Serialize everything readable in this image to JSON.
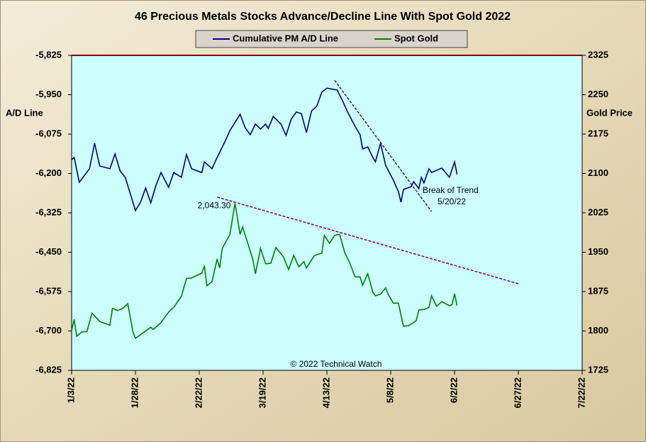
{
  "chart_data": {
    "type": "line",
    "title": "46 Precious Metals Stocks Advance/Decline Line With Spot Gold 2022",
    "y_label": "A/D Line",
    "y2_label": "Gold Price",
    "credit": "© 2022 Technical Watch",
    "note": "Break of Trend",
    "note_date": "5/20/22",
    "background": "#ccffff",
    "xlim": [
      "1/3/22",
      "7/22/22"
    ],
    "xticks": [
      "1/3/22",
      "1/28/22",
      "2/22/22",
      "3/19/22",
      "4/13/22",
      "5/8/22",
      "6/2/22",
      "6/27/22",
      "7/22/22"
    ],
    "ylim": [
      -6825,
      -5825
    ],
    "yticks": [
      {
        "value": -6825,
        "label": "-6,825"
      },
      {
        "value": -6700,
        "label": "-6,700"
      },
      {
        "value": -6575,
        "label": "-6,575"
      },
      {
        "value": -6450,
        "label": "-6,450"
      },
      {
        "value": -6325,
        "label": "-6,325"
      },
      {
        "value": -6200,
        "label": "-6,200"
      },
      {
        "value": -6075,
        "label": "-6,075"
      },
      {
        "value": -5950,
        "label": "-5,950"
      },
      {
        "value": -5825,
        "label": "-5,825"
      }
    ],
    "y2lim": [
      1725,
      2325
    ],
    "y2ticks": [
      1725,
      1800,
      1875,
      1950,
      2025,
      2100,
      2175,
      2250,
      2325
    ],
    "series": [
      {
        "name": "Cumulative PM A/D Line",
        "color": "#000080",
        "axis": "y",
        "x": [
          "1/3/22",
          "1/4/22",
          "1/6/22",
          "1/10/22",
          "1/12/22",
          "1/14/22",
          "1/18/22",
          "1/20/22",
          "1/22/22",
          "1/24/22",
          "1/27/22",
          "1/28/22",
          "1/30/22",
          "2/1/22",
          "2/3/22",
          "2/5/22",
          "2/7/22",
          "2/10/22",
          "2/12/22",
          "2/15/22",
          "2/17/22",
          "2/19/22",
          "2/23/22",
          "2/24/22",
          "2/27/22",
          "3/1/22",
          "3/4/22",
          "3/6/22",
          "3/10/22",
          "3/12/22",
          "3/14/22",
          "3/16/22",
          "3/18/22",
          "3/20/22",
          "3/21/22",
          "3/23/22",
          "3/26/22",
          "3/28/22",
          "3/30/22",
          "4/1/22",
          "4/3/22",
          "4/5/22",
          "4/7/22",
          "4/9/22",
          "4/11/22",
          "4/13/22",
          "4/17/22",
          "4/19/22",
          "4/21/22",
          "4/24/22",
          "4/26/22",
          "4/27/22",
          "4/29/22",
          "5/1/22",
          "5/2/22",
          "5/4/22",
          "5/6/22",
          "5/9/22",
          "5/11/22",
          "5/12/22",
          "5/13/22",
          "5/16/22",
          "5/17/22",
          "5/19/22",
          "5/20/22",
          "5/21/22",
          "5/23/22",
          "5/24/22",
          "5/28/22",
          "5/31/22",
          "6/2/22",
          "6/3/22"
        ],
        "values": [
          -6156,
          -6149,
          -6228,
          -6185,
          -6104,
          -6176,
          -6185,
          -6138,
          -6192,
          -6212,
          -6291,
          -6318,
          -6291,
          -6246,
          -6293,
          -6239,
          -6197,
          -6244,
          -6197,
          -6212,
          -6140,
          -6185,
          -6197,
          -6163,
          -6185,
          -6149,
          -6100,
          -6064,
          -6012,
          -6055,
          -6077,
          -6043,
          -6059,
          -6043,
          -6057,
          -6019,
          -6043,
          -6079,
          -6028,
          -6005,
          -6010,
          -6070,
          -6001,
          -5987,
          -5942,
          -5929,
          -5935,
          -5967,
          -6003,
          -6050,
          -6077,
          -6122,
          -6116,
          -6149,
          -6163,
          -6104,
          -6174,
          -6221,
          -6257,
          -6291,
          -6251,
          -6242,
          -6226,
          -6248,
          -6212,
          -6230,
          -6185,
          -6197,
          -6183,
          -6212,
          -6163,
          -6203
        ]
      },
      {
        "name": "Spot Gold",
        "color": "#008000",
        "axis": "y2",
        "x": [
          "1/3/22",
          "1/4/22",
          "1/5/22",
          "1/7/22",
          "1/9/22",
          "1/11/22",
          "1/14/22",
          "1/18/22",
          "1/19/22",
          "1/21/22",
          "1/23/22",
          "1/25/22",
          "1/27/22",
          "1/28/22",
          "1/30/22",
          "2/3/22",
          "2/4/22",
          "2/7/22",
          "2/10/22",
          "2/12/22",
          "2/15/22",
          "2/17/22",
          "2/19/22",
          "2/23/22",
          "2/24/22",
          "2/25/22",
          "2/27/22",
          "3/1/22",
          "3/2/22",
          "3/3/22",
          "3/6/22",
          "3/8/22",
          "3/10/22",
          "3/11/22",
          "3/13/22",
          "3/15/22",
          "3/16/22",
          "3/18/22",
          "3/20/22",
          "3/22/22",
          "3/24/22",
          "3/27/22",
          "3/29/22",
          "3/31/22",
          "4/2/22",
          "4/4/22",
          "4/5/22",
          "4/8/22",
          "4/10/22",
          "4/11/22",
          "4/12/22",
          "4/14/22",
          "4/16/22",
          "4/18/22",
          "4/20/22",
          "4/22/22",
          "4/24/22",
          "4/26/22",
          "4/27/22",
          "4/29/22",
          "5/1/22",
          "5/2/22",
          "5/4/22",
          "5/6/22",
          "5/7/22",
          "5/9/22",
          "5/11/22",
          "5/13/22",
          "5/15/22",
          "5/17/22",
          "5/18/22",
          "5/19/22",
          "5/21/22",
          "5/23/22",
          "5/24/22",
          "5/26/22",
          "5/28/22",
          "5/31/22",
          "6/1/22",
          "6/2/22",
          "6/3/22"
        ],
        "values": [
          1801,
          1822,
          1790,
          1798,
          1799,
          1834,
          1818,
          1811,
          1843,
          1839,
          1843,
          1852,
          1799,
          1786,
          1793,
          1807,
          1803,
          1816,
          1836,
          1845,
          1866,
          1900,
          1901,
          1910,
          1924,
          1886,
          1894,
          1937,
          1920,
          1957,
          1984,
          2043.3,
          1984,
          1998,
          1967,
          1936,
          1909,
          1957,
          1928,
          1929,
          1959,
          1941,
          1917,
          1944,
          1922,
          1932,
          1920,
          1943,
          1947,
          1948,
          1982,
          1967,
          1982,
          1984,
          1949,
          1929,
          1903,
          1903,
          1887,
          1909,
          1874,
          1867,
          1870,
          1882,
          1870,
          1853,
          1853,
          1809,
          1810,
          1816,
          1820,
          1840,
          1841,
          1845,
          1867,
          1847,
          1856,
          1848,
          1850,
          1871,
          1848
        ]
      }
    ],
    "peak_label": {
      "text": "2,043.30",
      "x": "3/8/22",
      "value": 2043.3,
      "axis": "y2"
    },
    "trend_lines": [
      {
        "color": "#800060",
        "axis": "y2",
        "x": [
          "3/1/22",
          "6/27/22"
        ],
        "values": [
          2055,
          1890
        ]
      },
      {
        "color": "#333333",
        "axis": "y",
        "x": [
          "4/16/22",
          "5/24/22"
        ],
        "values": [
          -5904,
          -6321
        ]
      }
    ]
  }
}
